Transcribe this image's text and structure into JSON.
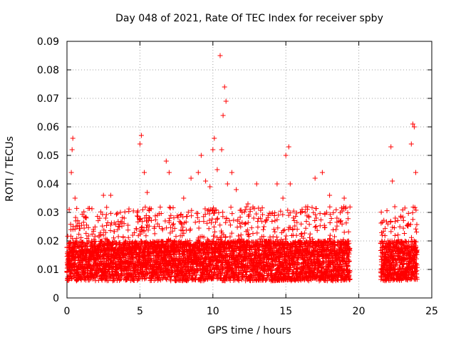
{
  "chart_data": {
    "type": "scatter",
    "title": "Day 048 of 2021, Rate Of TEC Index for receiver spby",
    "xlabel": "GPS time / hours",
    "ylabel": "ROTI / TECUs",
    "xlim": [
      0,
      25
    ],
    "ylim": [
      0,
      0.09
    ],
    "x_ticks": [
      "0",
      "5",
      "10",
      "15",
      "20",
      "25"
    ],
    "y_ticks": [
      "0",
      "0.01",
      "0.02",
      "0.03",
      "0.04",
      "0.05",
      "0.06",
      "0.07",
      "0.08",
      "0.09"
    ],
    "grid": true,
    "marker": "+",
    "marker_color": "#ff0000",
    "series": [
      {
        "x": [
          0.05,
          0.15,
          0.3,
          0.35,
          0.4,
          0.55,
          0.6,
          1.0,
          1.5,
          2.0,
          2.5,
          2.65,
          3.0,
          3.2,
          3.6,
          4.0,
          4.5,
          4.8,
          5.0,
          5.1,
          5.3,
          5.5,
          5.6,
          6.0,
          6.2,
          6.5,
          6.8,
          7.0,
          7.3,
          7.6,
          8.0,
          8.5,
          9.0,
          9.2,
          9.5,
          9.8,
          10.0,
          10.1,
          10.3,
          10.5,
          10.6,
          10.7,
          10.8,
          10.9,
          11.0,
          11.3,
          11.6,
          12.0,
          12.4,
          12.8,
          13.0,
          13.5,
          14.0,
          14.4,
          14.8,
          15.0,
          15.2,
          15.3,
          15.5,
          16.0,
          16.5,
          17.0,
          17.5,
          17.8,
          18.0,
          18.5,
          19.0,
          19.3,
          21.6,
          21.8,
          22.0,
          22.2,
          22.3,
          22.5,
          23.0,
          23.4,
          23.6,
          23.7,
          23.8,
          23.9
        ],
        "y": [
          0.012,
          0.031,
          0.044,
          0.052,
          0.056,
          0.035,
          0.015,
          0.018,
          0.02,
          0.014,
          0.036,
          0.028,
          0.036,
          0.013,
          0.025,
          0.02,
          0.022,
          0.03,
          0.054,
          0.057,
          0.044,
          0.037,
          0.014,
          0.025,
          0.029,
          0.018,
          0.048,
          0.044,
          0.026,
          0.018,
          0.035,
          0.042,
          0.044,
          0.05,
          0.041,
          0.039,
          0.052,
          0.056,
          0.045,
          0.085,
          0.052,
          0.064,
          0.074,
          0.069,
          0.04,
          0.044,
          0.038,
          0.03,
          0.033,
          0.028,
          0.04,
          0.025,
          0.018,
          0.04,
          0.035,
          0.05,
          0.053,
          0.04,
          0.022,
          0.03,
          0.032,
          0.042,
          0.044,
          0.03,
          0.036,
          0.028,
          0.035,
          0.02,
          0.022,
          0.018,
          0.02,
          0.053,
          0.041,
          0.028,
          0.016,
          0.026,
          0.054,
          0.061,
          0.06,
          0.044
        ],
        "band": {
          "segments": [
            [
              0.0,
              19.4
            ],
            [
              21.5,
              24.0
            ]
          ],
          "typical_low": 0.006,
          "typical_high": 0.02,
          "max_extent": 0.032
        }
      }
    ]
  }
}
